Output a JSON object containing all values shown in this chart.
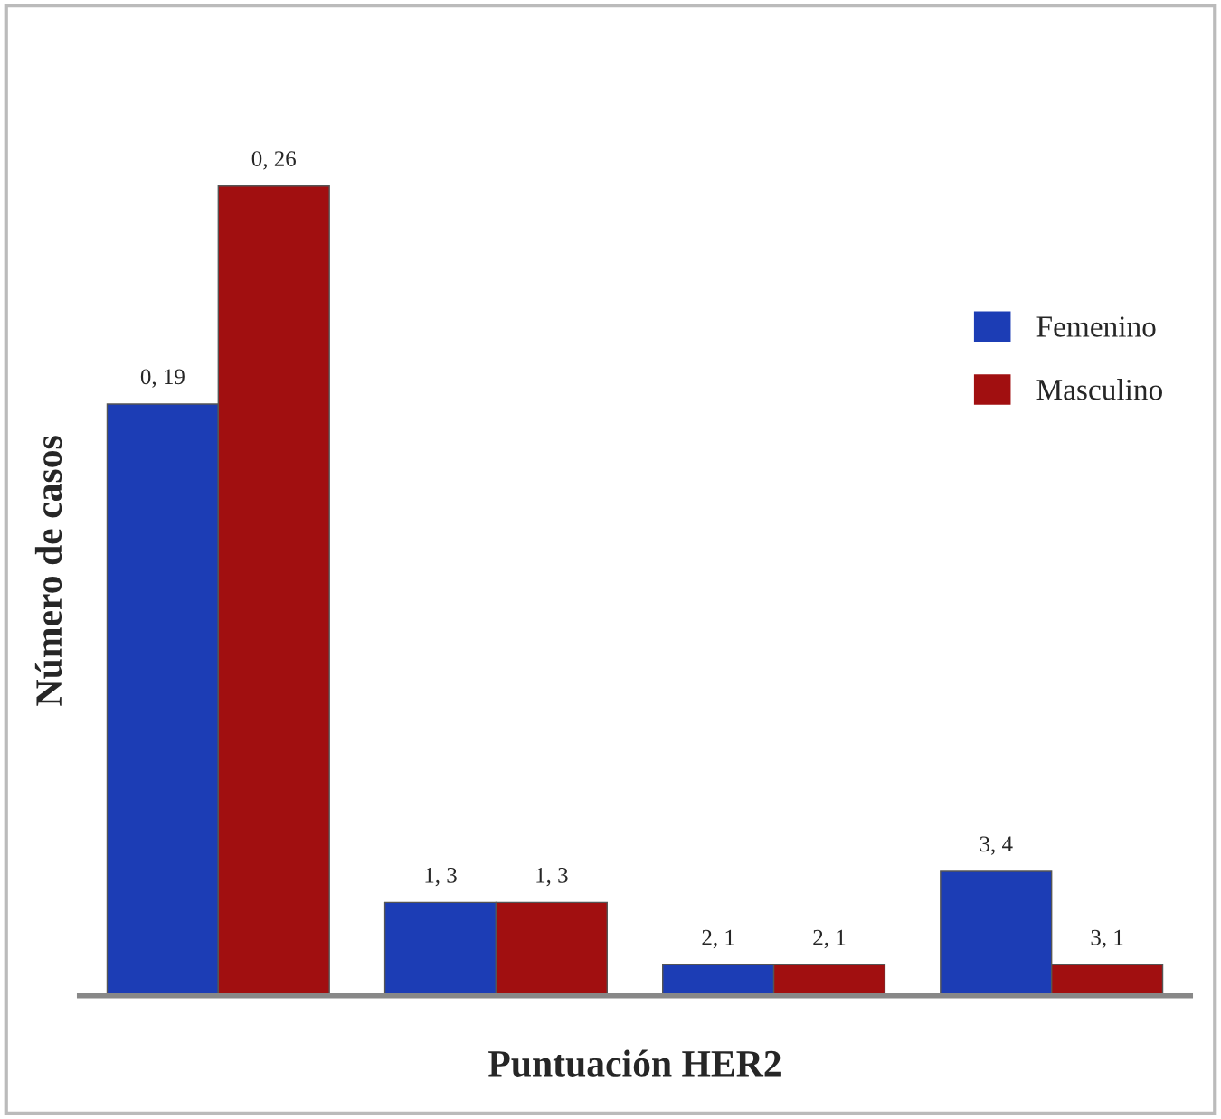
{
  "chart_data": {
    "type": "bar",
    "xlabel": "Puntuación HER2",
    "ylabel": "Número de casos",
    "categories": [
      null,
      null,
      null,
      null
    ],
    "series": [
      {
        "name": "Femenino",
        "color": "#1c3db5",
        "values": [
          19,
          3,
          1,
          4
        ],
        "value_labels": [
          "0, 19",
          "1, 3",
          "2, 1",
          "3, 4"
        ]
      },
      {
        "name": "Masculino",
        "color": "#a10f10",
        "values": [
          26,
          3,
          1,
          1
        ],
        "value_labels": [
          "0, 26",
          "1, 3",
          "2, 1",
          "3, 1"
        ]
      }
    ],
    "legend": "right",
    "grid": false
  }
}
